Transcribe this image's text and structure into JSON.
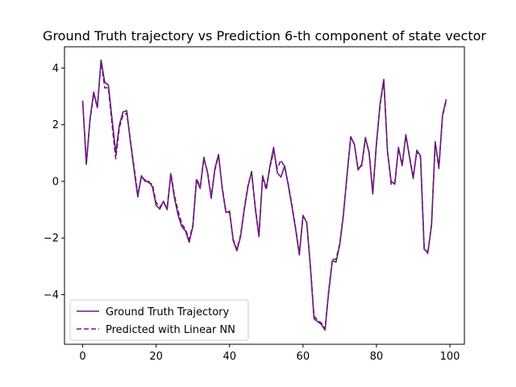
{
  "chart_data": {
    "type": "line",
    "title": "Ground Truth trajectory vs Prediction 6-th component of state vector",
    "xlabel": "",
    "ylabel": "",
    "xlim": [
      -4.95,
      103.95
    ],
    "ylim": [
      -5.75,
      4.75
    ],
    "xticks": [
      0,
      20,
      40,
      60,
      80,
      100
    ],
    "yticks": [
      -4,
      -2,
      0,
      2,
      4
    ],
    "grid": false,
    "legend_position": "lower-left",
    "x": [
      0,
      1,
      2,
      3,
      4,
      5,
      6,
      7,
      8,
      9,
      10,
      11,
      12,
      13,
      14,
      15,
      16,
      17,
      18,
      19,
      20,
      21,
      22,
      23,
      24,
      25,
      26,
      27,
      28,
      29,
      30,
      31,
      32,
      33,
      34,
      35,
      36,
      37,
      38,
      39,
      40,
      41,
      42,
      43,
      44,
      45,
      46,
      47,
      48,
      49,
      50,
      51,
      52,
      53,
      54,
      55,
      56,
      57,
      58,
      59,
      60,
      61,
      62,
      63,
      64,
      65,
      66,
      67,
      68,
      69,
      70,
      71,
      72,
      73,
      74,
      75,
      76,
      77,
      78,
      79,
      80,
      81,
      82,
      83,
      84,
      85,
      86,
      87,
      88,
      89,
      90,
      91,
      92,
      93,
      94,
      95,
      96,
      97,
      98,
      99
    ],
    "series": [
      {
        "name": "Ground Truth Trajectory",
        "style": "solid",
        "color": "#6a1b7a",
        "values": [
          2.85,
          0.6,
          2.2,
          3.15,
          2.6,
          4.28,
          3.5,
          3.4,
          2.2,
          1.0,
          2.0,
          2.45,
          2.5,
          1.4,
          0.4,
          -0.55,
          0.2,
          0.0,
          0.0,
          -0.2,
          -0.85,
          -0.98,
          -0.7,
          -1.0,
          0.25,
          -0.6,
          -1.2,
          -1.6,
          -1.75,
          -2.15,
          -1.6,
          0.05,
          -0.25,
          0.85,
          0.3,
          -0.6,
          0.45,
          0.95,
          -0.25,
          -1.1,
          -1.05,
          -2.1,
          -2.45,
          -1.95,
          -1.0,
          -0.2,
          0.35,
          -0.95,
          -1.95,
          0.2,
          -0.25,
          0.55,
          1.2,
          0.3,
          0.15,
          0.55,
          -0.15,
          -0.9,
          -1.7,
          -2.6,
          -1.2,
          -1.45,
          -3.0,
          -4.85,
          -4.95,
          -5.05,
          -5.25,
          -3.9,
          -2.8,
          -2.85,
          -2.25,
          -1.2,
          0.25,
          1.58,
          1.3,
          0.4,
          0.6,
          1.55,
          1.0,
          -0.45,
          1.35,
          2.75,
          3.6,
          1.05,
          0.0,
          -0.1,
          1.2,
          0.55,
          1.65,
          0.85,
          0.1,
          1.1,
          0.9,
          -2.4,
          -2.5,
          -1.55,
          1.4,
          0.5,
          2.35,
          2.9
        ]
      },
      {
        "name": "Predicted with Linear NN",
        "style": "dashed",
        "color": "#6a1b7a",
        "values": [
          2.8,
          0.65,
          2.15,
          3.1,
          2.6,
          4.25,
          3.3,
          3.3,
          2.0,
          0.8,
          1.9,
          2.35,
          2.4,
          1.45,
          0.5,
          -0.45,
          0.15,
          0.05,
          -0.05,
          -0.1,
          -0.75,
          -0.9,
          -0.75,
          -0.95,
          0.3,
          -0.5,
          -1.05,
          -1.5,
          -1.7,
          -2.05,
          -1.55,
          0.1,
          -0.2,
          0.8,
          0.35,
          -0.55,
          0.4,
          0.9,
          -0.2,
          -1.05,
          -1.1,
          -2.05,
          -2.4,
          -1.9,
          -0.95,
          -0.15,
          0.3,
          -0.9,
          -1.9,
          0.15,
          -0.3,
          0.5,
          1.05,
          0.45,
          0.75,
          0.5,
          -0.1,
          -0.85,
          -1.65,
          -2.55,
          -1.25,
          -1.4,
          -2.95,
          -4.75,
          -4.9,
          -5.0,
          -5.2,
          -3.85,
          -2.75,
          -2.75,
          -2.2,
          -1.15,
          0.2,
          1.55,
          1.3,
          0.45,
          0.55,
          1.5,
          1.05,
          -0.4,
          1.3,
          2.7,
          3.55,
          1.1,
          -0.1,
          -0.05,
          1.15,
          0.6,
          1.6,
          0.9,
          0.15,
          1.05,
          0.85,
          -2.35,
          -2.55,
          -1.5,
          1.35,
          0.45,
          2.3,
          2.85
        ]
      }
    ]
  }
}
